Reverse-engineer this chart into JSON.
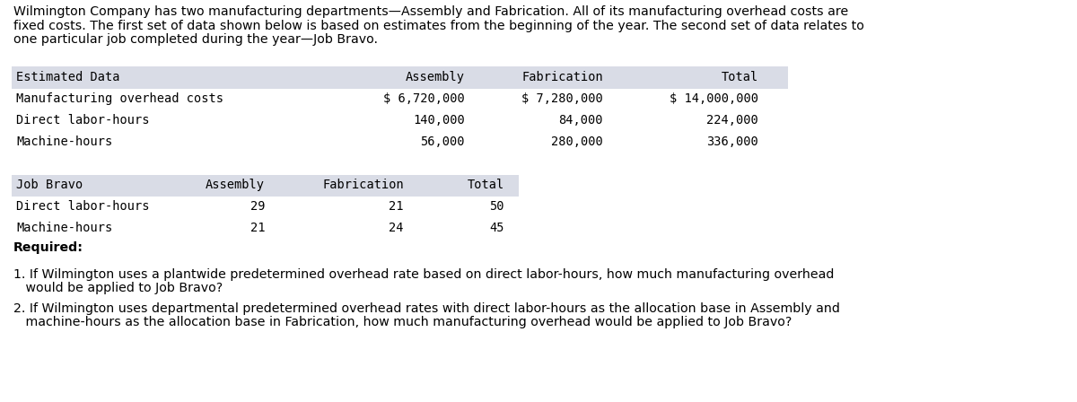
{
  "intro_text_lines": [
    "Wilmington Company has two manufacturing departments—Assembly and Fabrication. All of its manufacturing overhead costs are",
    "fixed costs. The first set of data shown below is based on estimates from the beginning of the year. The second set of data relates to",
    "one particular job completed during the year—Job Bravo."
  ],
  "table1_header": [
    "Estimated Data",
    "Assembly",
    "Fabrication",
    "Total"
  ],
  "table1_rows": [
    [
      "Manufacturing overhead costs",
      "$ 6,720,000",
      "$ 7,280,000",
      "$ 14,000,000"
    ],
    [
      "Direct labor-hours",
      "140,000",
      "84,000",
      "224,000"
    ],
    [
      "Machine-hours",
      "56,000",
      "280,000",
      "336,000"
    ]
  ],
  "table2_header": [
    "Job Bravo",
    "Assembly",
    "Fabrication",
    "Total"
  ],
  "table2_rows": [
    [
      "Direct labor-hours",
      "29",
      "21",
      "50"
    ],
    [
      "Machine-hours",
      "21",
      "24",
      "45"
    ]
  ],
  "required_label": "Required:",
  "q1": "1. If Wilmington uses a plantwide predetermined overhead rate based on direct labor-hours, how much manufacturing overhead",
  "q1b": "   would be applied to Job Bravo?",
  "q2": "2. If Wilmington uses departmental predetermined overhead rates with direct labor-hours as the allocation base in Assembly and",
  "q2b": "   machine-hours as the allocation base in Fabrication, how much manufacturing overhead would be applied to Job Bravo?",
  "bg_color": "#ffffff",
  "header_bg_color": "#d9dce6",
  "font_color": "#000000",
  "mono_font": "DejaVu Sans Mono",
  "sans_font": "DejaVu Sans",
  "intro_fontsize": 10.2,
  "table_fontsize": 9.8,
  "question_fontsize": 10.2
}
